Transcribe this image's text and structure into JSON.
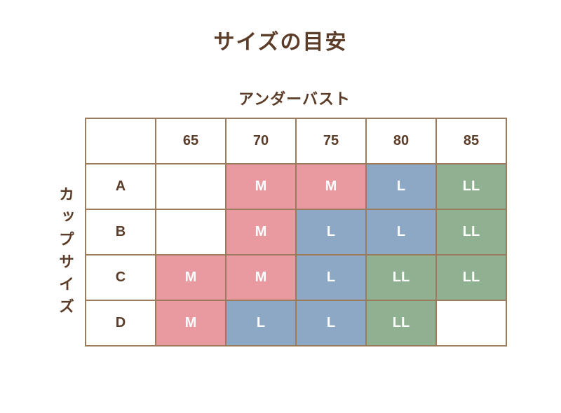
{
  "title": "サイズの目安",
  "topLabel": "アンダーバスト",
  "sideLabel": "カップサイズ",
  "table": {
    "columnHeaders": [
      "65",
      "70",
      "75",
      "80",
      "85"
    ],
    "rowHeaders": [
      "A",
      "B",
      "C",
      "D"
    ],
    "cells": [
      [
        {
          "v": "",
          "c": "empty"
        },
        {
          "v": "M",
          "c": "size-M"
        },
        {
          "v": "M",
          "c": "size-M"
        },
        {
          "v": "L",
          "c": "size-L"
        },
        {
          "v": "LL",
          "c": "size-LL"
        }
      ],
      [
        {
          "v": "",
          "c": "empty"
        },
        {
          "v": "M",
          "c": "size-M"
        },
        {
          "v": "L",
          "c": "size-L"
        },
        {
          "v": "L",
          "c": "size-L"
        },
        {
          "v": "LL",
          "c": "size-LL"
        }
      ],
      [
        {
          "v": "M",
          "c": "size-M"
        },
        {
          "v": "M",
          "c": "size-M"
        },
        {
          "v": "L",
          "c": "size-L"
        },
        {
          "v": "LL",
          "c": "size-LL"
        },
        {
          "v": "LL",
          "c": "size-LL"
        }
      ],
      [
        {
          "v": "M",
          "c": "size-M"
        },
        {
          "v": "L",
          "c": "size-L"
        },
        {
          "v": "L",
          "c": "size-L"
        },
        {
          "v": "LL",
          "c": "size-LL"
        },
        {
          "v": "",
          "c": "empty"
        }
      ]
    ]
  },
  "colors": {
    "text": "#5a3c28",
    "border": "#9c7a5c",
    "cellText": "#ffffff",
    "background": "#ffffff",
    "sizeM": "#e89aa0",
    "sizeL": "#8ca8c4",
    "sizeLL": "#8fb091"
  },
  "typography": {
    "titleSize": 30,
    "labelSize": 22,
    "cellSize": 20
  }
}
